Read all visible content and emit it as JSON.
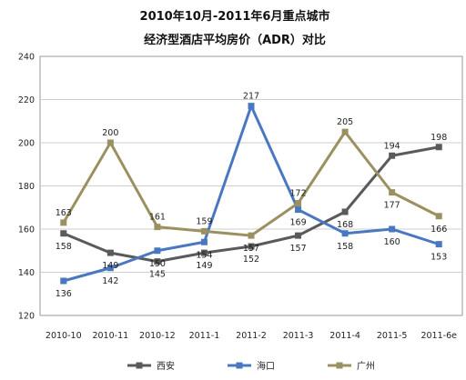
{
  "chart_data": {
    "type": "line",
    "title": [
      "2010年10月-2011年6月重点城市",
      "经济型酒店平均房价（ADR）对比"
    ],
    "categories": [
      "2010-10",
      "2010-11",
      "2010-12",
      "2011-1",
      "2011-2",
      "2011-3",
      "2011-4",
      "2011-5",
      "2011-6e"
    ],
    "ylim": [
      120,
      240
    ],
    "yticks": [
      120,
      140,
      160,
      180,
      200,
      220,
      240
    ],
    "grid": true,
    "legend_position": "bottom",
    "series": [
      {
        "name": "西安",
        "color": "#5a5a5a",
        "values": [
          158,
          149,
          145,
          149,
          152,
          157,
          168,
          194,
          198
        ]
      },
      {
        "name": "海口",
        "color": "#4a78c0",
        "values": [
          136,
          142,
          150,
          154,
          217,
          169,
          158,
          160,
          153
        ]
      },
      {
        "name": "广州",
        "color": "#9b9060",
        "values": [
          163,
          200,
          161,
          159,
          157,
          172,
          205,
          177,
          166
        ]
      }
    ]
  }
}
